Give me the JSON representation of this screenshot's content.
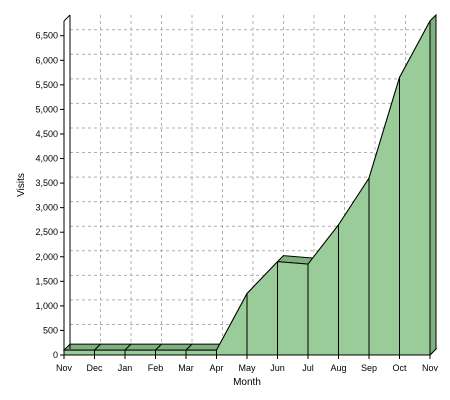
{
  "chart_data": {
    "type": "area",
    "title": "",
    "xlabel": "Month",
    "ylabel": "Visits",
    "categories": [
      "Nov",
      "Dec",
      "Jan",
      "Feb",
      "Mar",
      "Apr",
      "May",
      "Jun",
      "Jul",
      "Aug",
      "Sep",
      "Oct",
      "Nov"
    ],
    "values": [
      100,
      100,
      100,
      100,
      100,
      100,
      1250,
      1900,
      1850,
      2650,
      3600,
      5650,
      6800
    ],
    "ylim": [
      0,
      6800
    ],
    "yticks": [
      "0",
      "500",
      "1,000",
      "1,500",
      "2,000",
      "2,500",
      "3,000",
      "3,500",
      "4,000",
      "4,500",
      "5,000",
      "5,500",
      "6,000",
      "6,500"
    ],
    "grid": true,
    "style": "3d",
    "colors": {
      "fill": "#99cc99",
      "fill_dark": "#7fb07f",
      "line": "#000000",
      "grid": "#b0b0b0",
      "background": "#ffffff",
      "floor": "#e6e6e6"
    }
  }
}
